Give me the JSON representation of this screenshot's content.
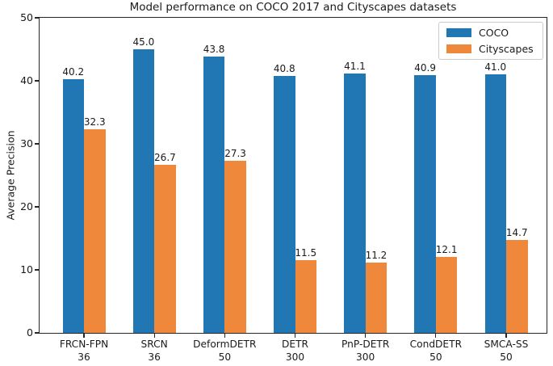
{
  "chart_data": {
    "type": "bar",
    "title": "Model performance on COCO 2017 and Cityscapes datasets",
    "xlabel": "",
    "ylabel": "Average Precision",
    "ylim": [
      0,
      50
    ],
    "yticks": [
      "0",
      "10",
      "20",
      "30",
      "40",
      "50"
    ],
    "grid": false,
    "legend_position": "upper right",
    "categories": [
      "FRCN-FPN",
      "SRCN",
      "DeformDETR",
      "DETR",
      "PnP-DETR",
      "CondDETR",
      "SMCA-SS"
    ],
    "category_sublabels": [
      "36",
      "36",
      "50",
      "300",
      "300",
      "50",
      "50"
    ],
    "series": [
      {
        "name": "COCO",
        "color": "#2077b4",
        "values": [
          40.2,
          45.0,
          43.8,
          40.8,
          41.1,
          40.9,
          41.0
        ],
        "labels": [
          "40.2",
          "45.0",
          "43.8",
          "40.8",
          "41.1",
          "40.9",
          "41.0"
        ]
      },
      {
        "name": "Cityscapes",
        "color": "#f0883c",
        "values": [
          32.3,
          26.7,
          27.3,
          11.5,
          11.2,
          12.1,
          14.7
        ],
        "labels": [
          "32.3",
          "26.7",
          "27.3",
          "11.5",
          "11.2",
          "12.1",
          "14.7"
        ]
      }
    ]
  }
}
